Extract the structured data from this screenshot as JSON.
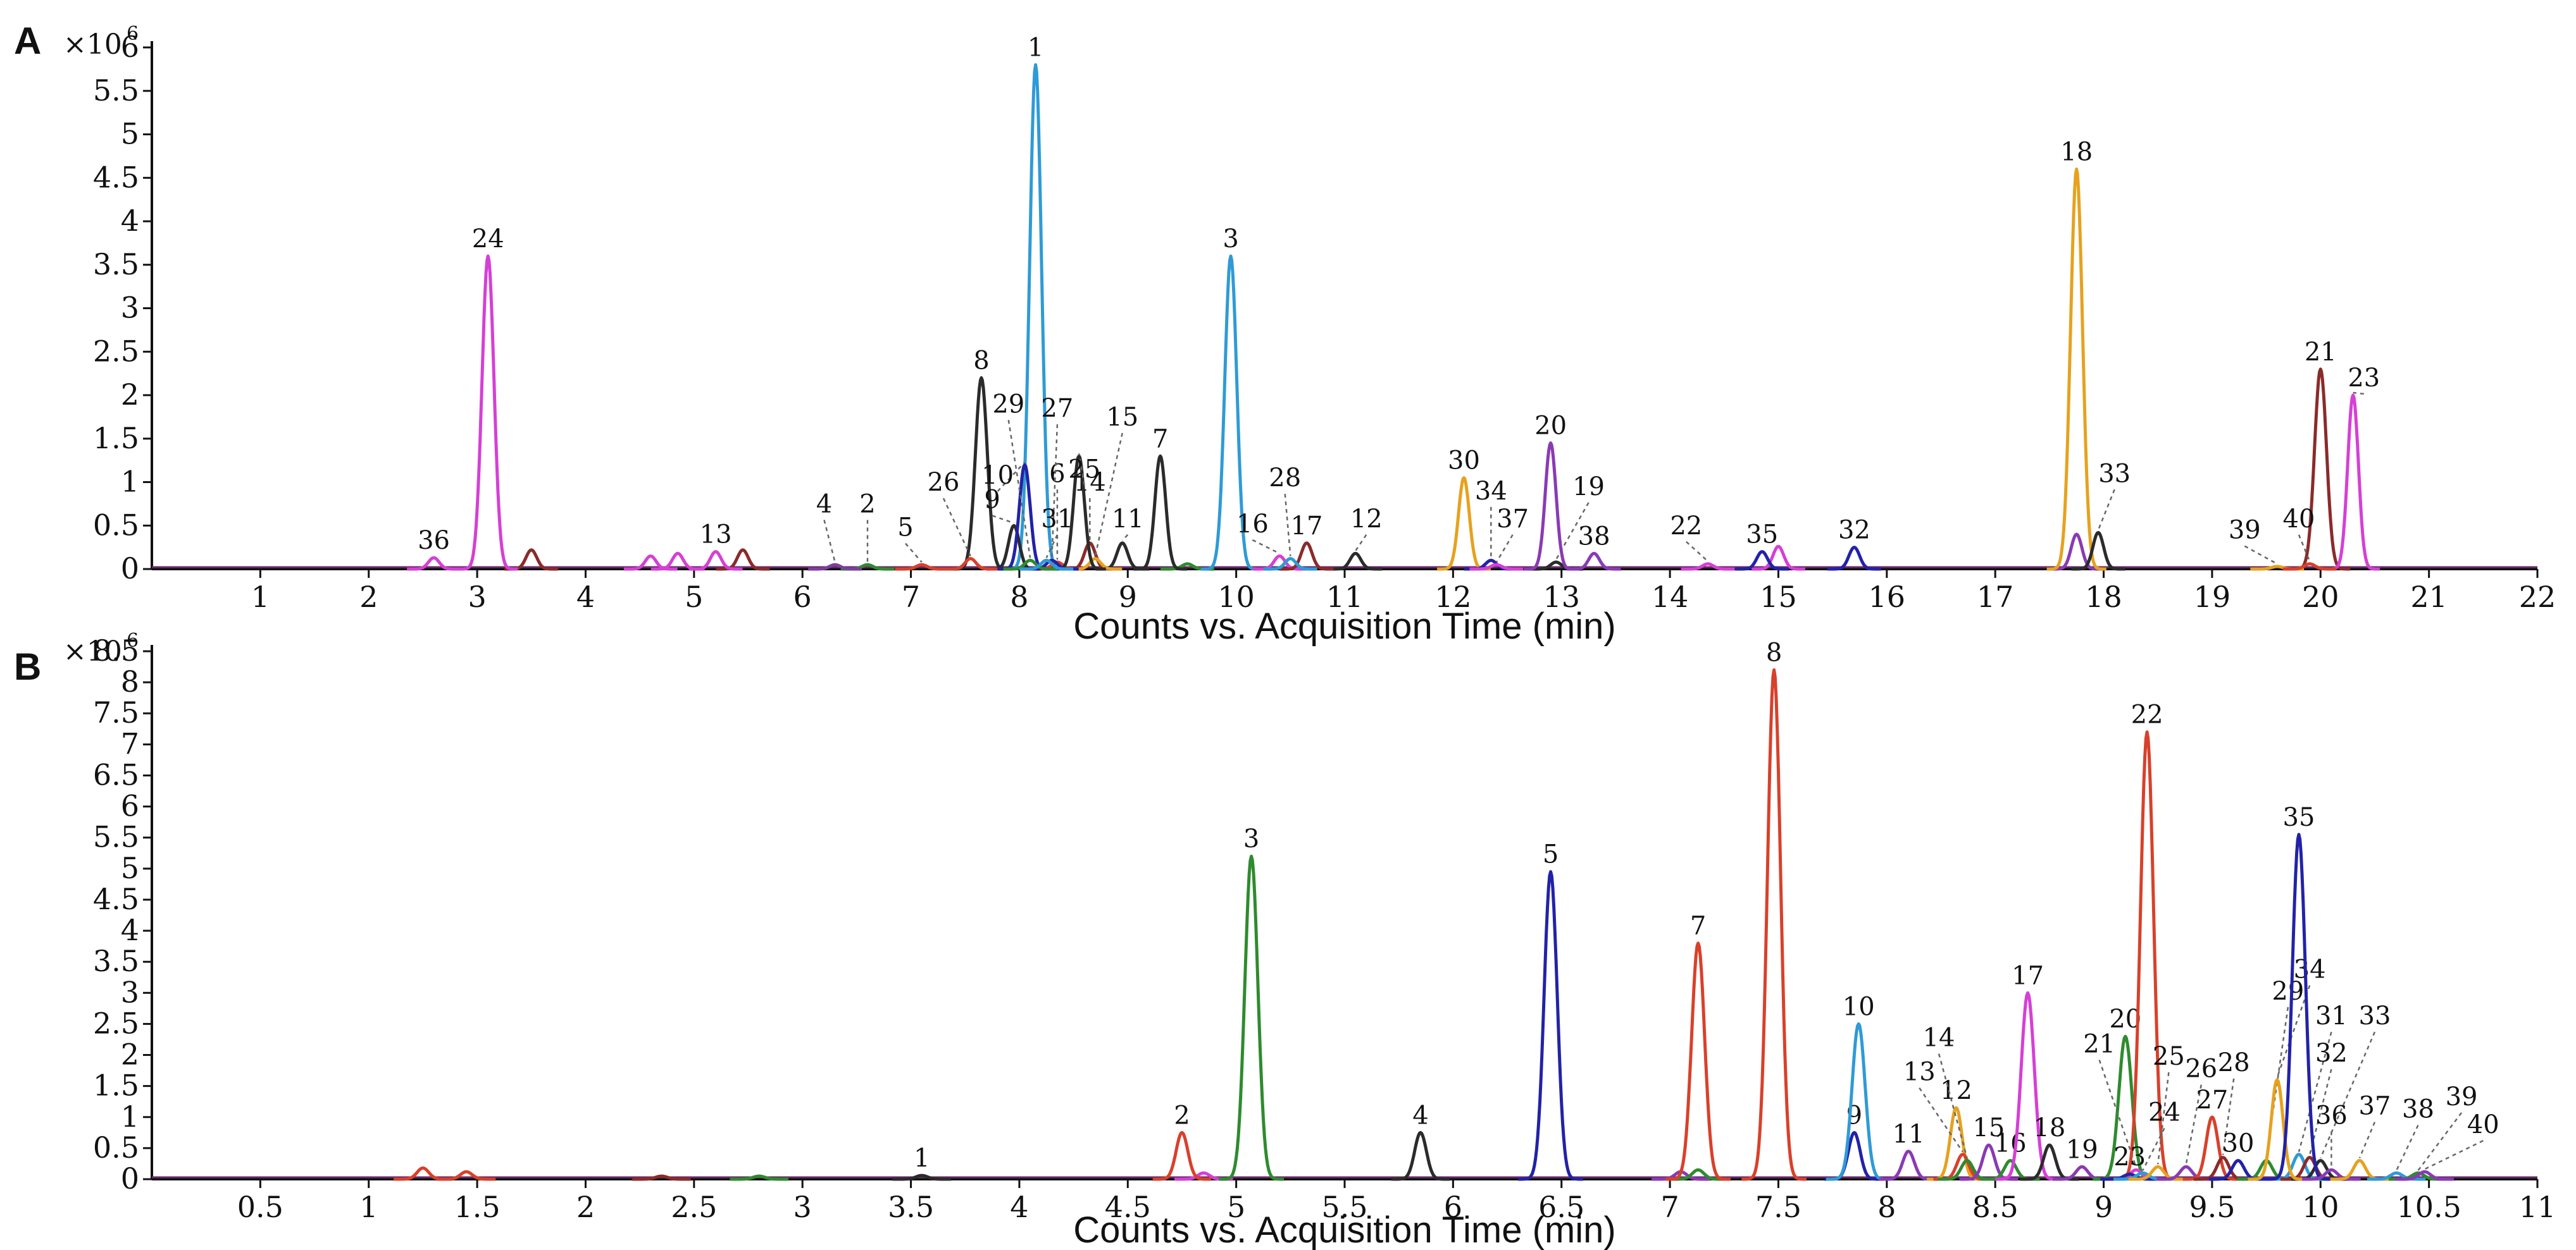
{
  "chart_data": [
    {
      "panel": "A",
      "type": "line",
      "multiplier": "×10",
      "multiplier_exp": "6",
      "xlabel": "Counts vs. Acquisition Time (min)",
      "xlim": [
        0,
        22
      ],
      "ylim": [
        0,
        6
      ],
      "x_ticks": [
        1,
        2,
        3,
        4,
        5,
        6,
        7,
        8,
        9,
        10,
        11,
        12,
        13,
        14,
        15,
        16,
        17,
        18,
        19,
        20,
        21,
        22
      ],
      "y_ticks": [
        0,
        0.5,
        1,
        1.5,
        2,
        2.5,
        3,
        3.5,
        4,
        4.5,
        5,
        5.5,
        6
      ],
      "peaks": [
        {
          "label": "1",
          "rt": 8.15,
          "height": 5.8,
          "color": "#2e9bd6"
        },
        {
          "label": "2",
          "rt": 6.6,
          "height": 0.05,
          "color": "#2e8b2e",
          "lx": 6.6,
          "ly": 0.55
        },
        {
          "label": "3",
          "rt": 9.95,
          "height": 3.6,
          "color": "#2e9bd6"
        },
        {
          "label": "4",
          "rt": 6.3,
          "height": 0.05,
          "color": "#7a3fa0",
          "lx": 6.2,
          "ly": 0.55
        },
        {
          "label": "5",
          "rt": 7.1,
          "height": 0.05,
          "color": "#d9402a",
          "lx": 6.95,
          "ly": 0.28
        },
        {
          "label": "6",
          "rt": 8.35,
          "height": 0.08,
          "color": "#d9402a",
          "lx": 8.35,
          "ly": 0.9
        },
        {
          "label": "7",
          "rt": 9.3,
          "height": 1.3,
          "color": "#2b2b2b"
        },
        {
          "label": "8",
          "rt": 7.65,
          "height": 2.2,
          "color": "#2b2b2b"
        },
        {
          "label": "9",
          "rt": 7.95,
          "height": 0.5,
          "color": "#2b2b2b",
          "lx": 7.75,
          "ly": 0.6
        },
        {
          "label": "10",
          "rt": 8.05,
          "height": 1.2,
          "color": "#2222a8",
          "lx": 7.8,
          "ly": 0.88
        },
        {
          "label": "11",
          "rt": 8.95,
          "height": 0.3,
          "color": "#2b2b2b",
          "lx": 9.0,
          "ly": 0.38
        },
        {
          "label": "12",
          "rt": 11.1,
          "height": 0.18,
          "color": "#2b2b2b",
          "lx": 11.2,
          "ly": 0.38
        },
        {
          "label": "13",
          "rt": 5.2,
          "height": 0.2,
          "color": "#d63fd6"
        },
        {
          "label": "14",
          "rt": 8.65,
          "height": 0.3,
          "color": "#8b2a2a",
          "lx": 8.65,
          "ly": 0.8
        },
        {
          "label": "15",
          "rt": 8.7,
          "height": 0.12,
          "color": "#e6a21e",
          "lx": 8.95,
          "ly": 1.55
        },
        {
          "label": "16",
          "rt": 10.4,
          "height": 0.15,
          "color": "#d63fd6",
          "lx": 10.15,
          "ly": 0.32
        },
        {
          "label": "17",
          "rt": 10.65,
          "height": 0.3,
          "color": "#8b2a2a"
        },
        {
          "label": "18",
          "rt": 17.75,
          "height": 4.6,
          "color": "#e6a21e"
        },
        {
          "label": "19",
          "rt": 12.95,
          "height": 0.08,
          "color": "#2b2b2b",
          "lx": 13.25,
          "ly": 0.75
        },
        {
          "label": "20",
          "rt": 12.9,
          "height": 1.45,
          "color": "#8a3ab5"
        },
        {
          "label": "21",
          "rt": 20.0,
          "height": 2.3,
          "color": "#8b2a2a"
        },
        {
          "label": "22",
          "rt": 14.35,
          "height": 0.06,
          "color": "#d63fd6",
          "lx": 14.15,
          "ly": 0.3
        },
        {
          "label": "23",
          "rt": 20.3,
          "height": 2.0,
          "color": "#d63fd6",
          "lx": 20.4,
          "ly": 2.0
        },
        {
          "label": "24",
          "rt": 3.1,
          "height": 3.6,
          "color": "#d63fd6"
        },
        {
          "label": "25",
          "rt": 8.55,
          "height": 1.3,
          "color": "#2b2b2b",
          "lx": 8.6,
          "ly": 0.95
        },
        {
          "label": "26",
          "rt": 7.55,
          "height": 0.12,
          "color": "#d9402a",
          "lx": 7.3,
          "ly": 0.8
        },
        {
          "label": "27",
          "rt": 8.3,
          "height": 0.1,
          "color": "#2222a8",
          "lx": 8.35,
          "ly": 1.65
        },
        {
          "label": "28",
          "rt": 10.5,
          "height": 0.12,
          "color": "#2e9bd6",
          "lx": 10.45,
          "ly": 0.85
        },
        {
          "label": "29",
          "rt": 8.1,
          "height": 0.1,
          "color": "#2e8b2e",
          "lx": 7.9,
          "ly": 1.7
        },
        {
          "label": "30",
          "rt": 12.1,
          "height": 1.05,
          "color": "#e6a21e"
        },
        {
          "label": "31",
          "rt": 8.25,
          "height": 0.1,
          "color": "#2e9bd6",
          "lx": 8.35,
          "ly": 0.38
        },
        {
          "label": "32",
          "rt": 15.7,
          "height": 0.25,
          "color": "#2222a8"
        },
        {
          "label": "33",
          "rt": 17.95,
          "height": 0.42,
          "color": "#2b2b2b",
          "lx": 18.1,
          "ly": 0.9
        },
        {
          "label": "34",
          "rt": 12.35,
          "height": 0.1,
          "color": "#2222a8",
          "lx": 12.35,
          "ly": 0.7
        },
        {
          "label": "35",
          "rt": 14.85,
          "height": 0.2,
          "color": "#2222a8"
        },
        {
          "label": "36",
          "rt": 2.6,
          "height": 0.13,
          "color": "#d63fd6"
        },
        {
          "label": "37",
          "rt": 12.4,
          "height": 0.05,
          "color": "#d63fd6",
          "lx": 12.55,
          "ly": 0.38
        },
        {
          "label": "38",
          "rt": 13.3,
          "height": 0.18,
          "color": "#8a3ab5"
        },
        {
          "label": "39",
          "rt": 19.6,
          "height": 0.03,
          "color": "#e6a21e",
          "lx": 19.3,
          "ly": 0.25
        },
        {
          "label": "40",
          "rt": 19.9,
          "height": 0.06,
          "color": "#d9402a",
          "lx": 19.8,
          "ly": 0.38
        }
      ],
      "minor_peaks": [
        {
          "rt": 3.5,
          "height": 0.22,
          "color": "#8b2a2a"
        },
        {
          "rt": 4.6,
          "height": 0.15,
          "color": "#d63fd6"
        },
        {
          "rt": 4.85,
          "height": 0.18,
          "color": "#d63fd6"
        },
        {
          "rt": 5.45,
          "height": 0.22,
          "color": "#8b2a2a"
        },
        {
          "rt": 15.0,
          "height": 0.26,
          "color": "#d63fd6"
        },
        {
          "rt": 17.75,
          "height": 0.4,
          "color": "#8a3ab5"
        },
        {
          "rt": 9.55,
          "height": 0.06,
          "color": "#2e8b2e"
        }
      ]
    },
    {
      "panel": "B",
      "type": "line",
      "multiplier": "×10",
      "multiplier_exp": "6",
      "xlabel": "Counts vs. Acquisition Time (min)",
      "xlim": [
        0,
        11
      ],
      "ylim": [
        0,
        8.5
      ],
      "x_ticks": [
        0.5,
        1,
        1.5,
        2,
        2.5,
        3,
        3.5,
        4,
        4.5,
        5,
        5.5,
        6,
        6.5,
        7,
        7.5,
        8,
        8.5,
        9,
        9.5,
        10,
        10.5,
        11
      ],
      "y_ticks": [
        0,
        0.5,
        1,
        1.5,
        2,
        2.5,
        3,
        3.5,
        4,
        4.5,
        5,
        5.5,
        6,
        6.5,
        7,
        7.5,
        8,
        8.5
      ],
      "peaks": [
        {
          "label": "1",
          "rt": 3.55,
          "height": 0.06,
          "color": "#2b2b2b"
        },
        {
          "label": "2",
          "rt": 4.75,
          "height": 0.75,
          "color": "#d9402a"
        },
        {
          "label": "3",
          "rt": 5.07,
          "height": 5.2,
          "color": "#2e8b2e"
        },
        {
          "label": "4",
          "rt": 5.85,
          "height": 0.75,
          "color": "#2b2b2b"
        },
        {
          "label": "5",
          "rt": 6.45,
          "height": 4.95,
          "color": "#2222a8"
        },
        {
          "label": "7",
          "rt": 7.13,
          "height": 3.8,
          "color": "#d9402a"
        },
        {
          "label": "8",
          "rt": 7.48,
          "height": 8.2,
          "color": "#d9402a"
        },
        {
          "label": "9",
          "rt": 7.85,
          "height": 0.75,
          "color": "#2222a8"
        },
        {
          "label": "10",
          "rt": 7.87,
          "height": 2.5,
          "color": "#2e9bd6"
        },
        {
          "label": "11",
          "rt": 8.1,
          "height": 0.45,
          "color": "#8a3ab5"
        },
        {
          "label": "12",
          "rt": 8.32,
          "height": 1.15,
          "color": "#e6a21e"
        },
        {
          "label": "13",
          "rt": 8.35,
          "height": 0.4,
          "color": "#d9402a",
          "lx": 8.15,
          "ly": 1.45
        },
        {
          "label": "14",
          "rt": 8.37,
          "height": 0.3,
          "color": "#2e8b2e",
          "lx": 8.24,
          "ly": 2.0
        },
        {
          "label": "15",
          "rt": 8.47,
          "height": 0.55,
          "color": "#8a3ab5"
        },
        {
          "label": "16",
          "rt": 8.57,
          "height": 0.3,
          "color": "#2e8b2e"
        },
        {
          "label": "17",
          "rt": 8.65,
          "height": 3.0,
          "color": "#d63fd6"
        },
        {
          "label": "18",
          "rt": 8.75,
          "height": 0.55,
          "color": "#2b2b2b"
        },
        {
          "label": "19",
          "rt": 8.9,
          "height": 0.2,
          "color": "#8a3ab5"
        },
        {
          "label": "20",
          "rt": 9.1,
          "height": 2.3,
          "color": "#2e8b2e"
        },
        {
          "label": "21",
          "rt": 9.15,
          "height": 0.15,
          "color": "#d63fd6",
          "lx": 8.98,
          "ly": 1.9
        },
        {
          "label": "22",
          "rt": 9.2,
          "height": 7.2,
          "color": "#d9402a"
        },
        {
          "label": "23",
          "rt": 9.12,
          "height": 0.08,
          "color": "#2222a8"
        },
        {
          "label": "24",
          "rt": 9.18,
          "height": 0.1,
          "color": "#2e9bd6",
          "lx": 9.28,
          "ly": 0.8
        },
        {
          "label": "25",
          "rt": 9.25,
          "height": 0.2,
          "color": "#e6a21e",
          "lx": 9.3,
          "ly": 1.7
        },
        {
          "label": "26",
          "rt": 9.38,
          "height": 0.2,
          "color": "#8a3ab5",
          "lx": 9.45,
          "ly": 1.5
        },
        {
          "label": "27",
          "rt": 9.5,
          "height": 1.0,
          "color": "#d9402a"
        },
        {
          "label": "28",
          "rt": 9.55,
          "height": 0.35,
          "color": "#8b2a2a",
          "lx": 9.6,
          "ly": 1.6
        },
        {
          "label": "29",
          "rt": 9.75,
          "height": 0.3,
          "color": "#2e8b2e",
          "lx": 9.85,
          "ly": 2.75
        },
        {
          "label": "30",
          "rt": 9.62,
          "height": 0.3,
          "color": "#2222a8"
        },
        {
          "label": "31",
          "rt": 9.9,
          "height": 0.4,
          "color": "#2e9bd6",
          "lx": 10.05,
          "ly": 2.35
        },
        {
          "label": "32",
          "rt": 9.95,
          "height": 0.35,
          "color": "#8b2a2a",
          "lx": 10.05,
          "ly": 1.75
        },
        {
          "label": "33",
          "rt": 10.0,
          "height": 0.3,
          "color": "#2b2b2b",
          "lx": 10.25,
          "ly": 2.35
        },
        {
          "label": "34",
          "rt": 9.8,
          "height": 1.6,
          "color": "#e6a21e",
          "lx": 9.95,
          "ly": 3.1
        },
        {
          "label": "35",
          "rt": 9.9,
          "height": 5.55,
          "color": "#2222a8"
        },
        {
          "label": "36",
          "rt": 10.05,
          "height": 0.15,
          "color": "#8a3ab5",
          "lx": 10.05,
          "ly": 0.75
        },
        {
          "label": "37",
          "rt": 10.18,
          "height": 0.3,
          "color": "#e6a21e",
          "lx": 10.25,
          "ly": 0.9
        },
        {
          "label": "38",
          "rt": 10.35,
          "height": 0.1,
          "color": "#2e9bd6",
          "lx": 10.45,
          "ly": 0.85
        },
        {
          "label": "39",
          "rt": 10.45,
          "height": 0.1,
          "color": "#2e8b2e",
          "lx": 10.65,
          "ly": 1.05
        },
        {
          "label": "40",
          "rt": 10.48,
          "height": 0.12,
          "color": "#8a3ab5",
          "lx": 10.75,
          "ly": 0.6
        }
      ],
      "minor_peaks": [
        {
          "rt": 1.25,
          "height": 0.18,
          "color": "#d9402a"
        },
        {
          "rt": 1.45,
          "height": 0.12,
          "color": "#d9402a"
        },
        {
          "rt": 2.35,
          "height": 0.05,
          "color": "#8b2a2a"
        },
        {
          "rt": 2.8,
          "height": 0.05,
          "color": "#2e8b2e"
        },
        {
          "rt": 4.85,
          "height": 0.1,
          "color": "#d63fd6"
        },
        {
          "rt": 7.05,
          "height": 0.12,
          "color": "#8a3ab5"
        },
        {
          "rt": 7.13,
          "height": 0.15,
          "color": "#2e8b2e"
        }
      ]
    }
  ]
}
